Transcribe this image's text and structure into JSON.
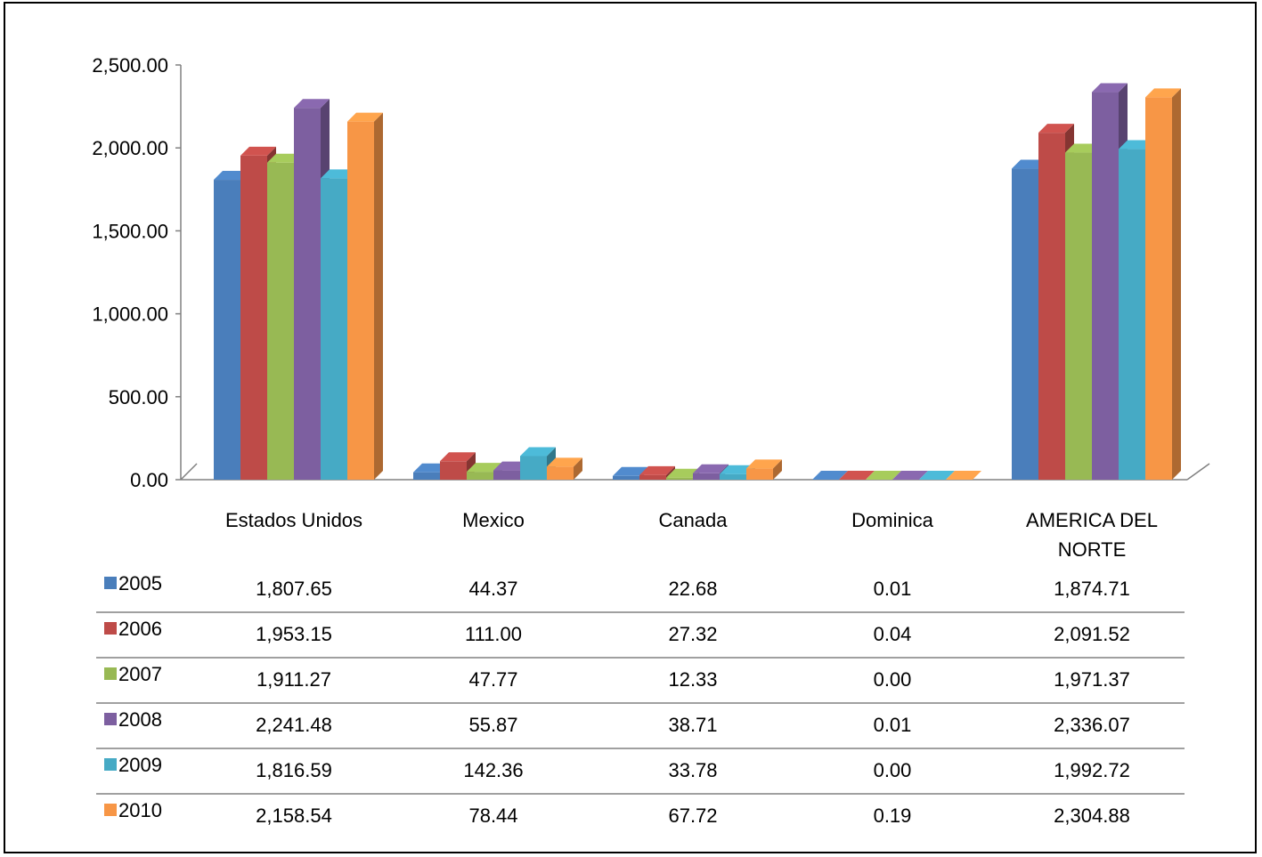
{
  "chart_data": {
    "type": "bar",
    "categories": [
      "Estados Unidos",
      "Mexico",
      "Canada",
      "Dominica",
      "AMERICA DEL NORTE"
    ],
    "category_lines": [
      [
        "Estados Unidos"
      ],
      [
        "Mexico"
      ],
      [
        "Canada"
      ],
      [
        "Dominica"
      ],
      [
        "AMERICA DEL",
        "NORTE"
      ]
    ],
    "series": [
      {
        "name": "2005",
        "color": "#4A7EBB",
        "values": [
          1807.65,
          44.37,
          22.68,
          0.01,
          1874.71
        ],
        "labels": [
          "1,807.65",
          "44.37",
          "22.68",
          "0.01",
          "1,874.71"
        ]
      },
      {
        "name": "2006",
        "color": "#BE4B48",
        "values": [
          1953.15,
          111.0,
          27.32,
          0.04,
          2091.52
        ],
        "labels": [
          "1,953.15",
          "111.00",
          "27.32",
          "0.04",
          "2,091.52"
        ]
      },
      {
        "name": "2007",
        "color": "#98B954",
        "values": [
          1911.27,
          47.77,
          12.33,
          0.0,
          1971.37
        ],
        "labels": [
          "1,911.27",
          "47.77",
          "12.33",
          "0.00",
          "1,971.37"
        ]
      },
      {
        "name": "2008",
        "color": "#7D5FA0",
        "values": [
          2241.48,
          55.87,
          38.71,
          0.01,
          2336.07
        ],
        "labels": [
          "2,241.48",
          "55.87",
          "38.71",
          "0.01",
          "2,336.07"
        ]
      },
      {
        "name": "2009",
        "color": "#46AAC5",
        "values": [
          1816.59,
          142.36,
          33.78,
          0.0,
          1992.72
        ],
        "labels": [
          "1,816.59",
          "142.36",
          "33.78",
          "0.00",
          "1,992.72"
        ]
      },
      {
        "name": "2010",
        "color": "#F79646",
        "values": [
          2158.54,
          78.44,
          67.72,
          0.19,
          2304.88
        ],
        "labels": [
          "2,158.54",
          "78.44",
          "67.72",
          "0.19",
          "2,304.88"
        ]
      }
    ],
    "ylim": [
      0,
      2500
    ],
    "yticks": [
      "0.00",
      "500.00",
      "1,000.00",
      "1,500.00",
      "2,000.00",
      "2,500.00"
    ],
    "title": "",
    "xlabel": "",
    "ylabel": "",
    "legend": "data-table",
    "grid": false,
    "projection": "3d-clustered-column"
  }
}
